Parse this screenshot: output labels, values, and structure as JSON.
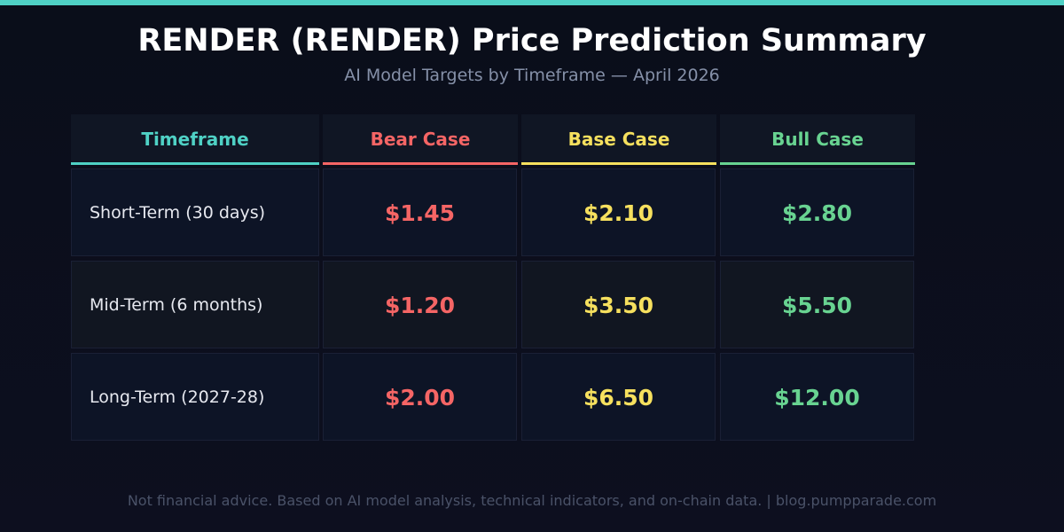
{
  "header": {
    "title": "RENDER (RENDER) Price Prediction Summary",
    "subtitle": "AI Model Targets by Timeframe — April 2026"
  },
  "colors": {
    "accent": "#4fd1c5",
    "bear": "#f56565",
    "base": "#f6e05e",
    "bull": "#68d391"
  },
  "chart_data": {
    "type": "table",
    "columns": [
      "Timeframe",
      "Bear Case",
      "Base Case",
      "Bull Case"
    ],
    "rows": [
      {
        "timeframe": "Short-Term (30 days)",
        "bear": "$1.45",
        "base": "$2.10",
        "bull": "$2.80"
      },
      {
        "timeframe": "Mid-Term (6 months)",
        "bear": "$1.20",
        "base": "$3.50",
        "bull": "$5.50"
      },
      {
        "timeframe": "Long-Term (2027-28)",
        "bear": "$2.00",
        "base": "$6.50",
        "bull": "$12.00"
      }
    ]
  },
  "footer": {
    "text": "Not financial advice. Based on AI model analysis, technical indicators, and on-chain data. | blog.pumpparade.com"
  }
}
